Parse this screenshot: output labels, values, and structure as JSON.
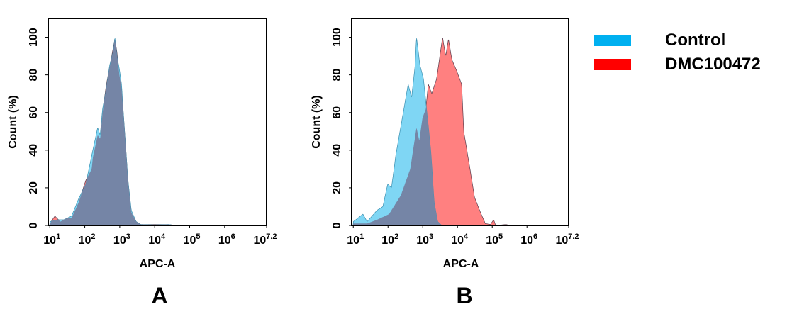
{
  "legend": [
    {
      "label": "Control",
      "color": "#00b0f0"
    },
    {
      "label": "DMC100472",
      "color": "#ff0000"
    }
  ],
  "colors": {
    "control_fill": "#7fd6f4",
    "dmc_fill": "#ff8080",
    "overlap_fill": "#7585a6",
    "outline": "#5a3a4a"
  },
  "chart_data": [
    {
      "type": "area",
      "panel_label": "A",
      "xlabel": "APC-A",
      "ylabel": "Count  (%)",
      "x_scale": "log",
      "xlim": [
        9,
        15849000
      ],
      "ylim": [
        0,
        110
      ],
      "x_ticks": [
        "10^1",
        "10^2",
        "10^3",
        "10^4",
        "10^5",
        "10^6",
        "10^7.2"
      ],
      "x_tick_values": [
        10,
        100,
        1000,
        10000,
        100000,
        1000000,
        15848932
      ],
      "y_ticks": [
        "0",
        "20",
        "40",
        "60",
        "80",
        "100"
      ],
      "y_tick_values": [
        0,
        20,
        40,
        60,
        80,
        100
      ],
      "grid": false,
      "series": [
        {
          "name": "Control",
          "x": [
            10,
            16,
            25,
            42,
            66,
            107,
            170,
            234,
            275,
            324,
            407,
            513,
            661,
            724,
            832,
            977,
            1122,
            1318,
            1698,
            2138,
            2951,
            3981,
            10000,
            25119,
            39811
          ],
          "y": [
            2,
            3,
            3,
            5,
            14,
            22,
            40,
            52,
            48,
            62,
            72,
            85,
            93,
            100,
            90,
            83,
            75,
            55,
            25,
            8,
            2,
            0.5,
            0.3,
            0.5,
            0
          ]
        },
        {
          "name": "DMC100472",
          "x": [
            10,
            14,
            20,
            32,
            42,
            66,
            107,
            158,
            170,
            234,
            275,
            324,
            407,
            513,
            661,
            724,
            832,
            977,
            1122,
            1318,
            1698,
            2138,
            2951,
            3981,
            25119,
            39811
          ],
          "y": [
            1,
            5,
            2,
            4,
            4,
            12,
            24,
            30,
            36,
            48,
            46,
            60,
            74,
            84,
            95,
            99,
            92,
            80,
            73,
            55,
            25,
            7,
            2,
            0.5,
            0.5,
            0
          ]
        }
      ]
    },
    {
      "type": "area",
      "panel_label": "B",
      "xlabel": "APC-A",
      "ylabel": "Count  (%)",
      "x_scale": "log",
      "xlim": [
        9,
        15849000
      ],
      "ylim": [
        0,
        110
      ],
      "x_ticks": [
        "10^1",
        "10^2",
        "10^3",
        "10^4",
        "10^5",
        "10^6",
        "10^7.2"
      ],
      "x_tick_values": [
        10,
        100,
        1000,
        10000,
        100000,
        1000000,
        15848932
      ],
      "y_ticks": [
        "0",
        "20",
        "40",
        "60",
        "80",
        "100"
      ],
      "y_tick_values": [
        0,
        20,
        40,
        60,
        80,
        100
      ],
      "grid": false,
      "series": [
        {
          "name": "Control",
          "x": [
            10,
            19,
            25,
            48,
            71,
            98,
            126,
            170,
            275,
            380,
            479,
            603,
            661,
            832,
            1047,
            1318,
            1698,
            2138,
            2692,
            3548
          ],
          "y": [
            2,
            6,
            2,
            8,
            10,
            22,
            20,
            38,
            60,
            75,
            68,
            85,
            100,
            85,
            78,
            60,
            40,
            12,
            2,
            0
          ]
        },
        {
          "name": "DMC100472",
          "x": [
            10,
            25,
            48,
            107,
            234,
            437,
            661,
            794,
            977,
            1230,
            1445,
            1820,
            2512,
            3715,
            4571,
            5495,
            6918,
            9550,
            13183,
            15136,
            22909,
            30903,
            45709,
            63096,
            89125,
            109648,
            125893,
            251189,
            316228
          ],
          "y": [
            1,
            1,
            3,
            6,
            16,
            30,
            52,
            45,
            57,
            62,
            75,
            70,
            78,
            100,
            90,
            99,
            88,
            82,
            75,
            50,
            30,
            15,
            7,
            1,
            0.5,
            3,
            0,
            0.5,
            0
          ]
        }
      ]
    }
  ]
}
